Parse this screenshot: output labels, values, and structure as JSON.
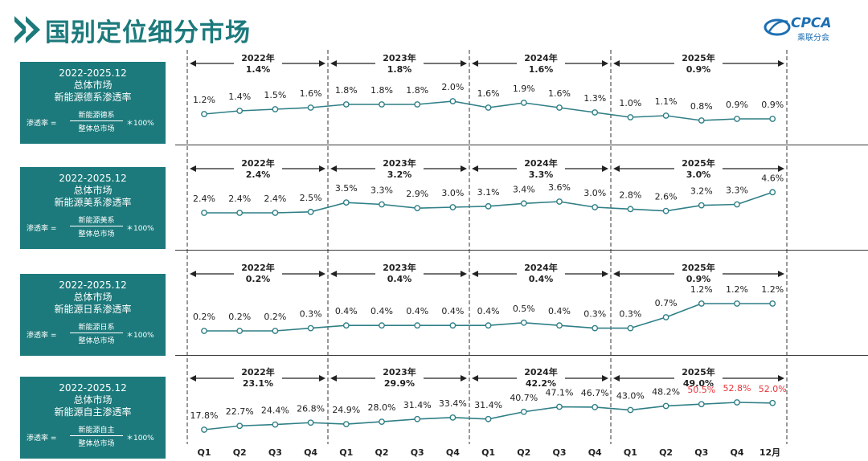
{
  "page": {
    "title": "国别定位细分市场",
    "logo_text": "CPCA",
    "logo_sub": "乘联分会"
  },
  "colors": {
    "teal": "#1d7a7c",
    "line": "#2f7f86",
    "highlight": "#e8343a"
  },
  "period_labels": [
    "Q1",
    "Q2",
    "Q3",
    "Q4",
    "Q1",
    "Q2",
    "Q3",
    "Q4",
    "Q1",
    "Q2",
    "Q3",
    "Q4",
    "Q1",
    "Q2",
    "Q3",
    "Q4",
    "12月"
  ],
  "panels": [
    {
      "box_line1": "2022-2025.12",
      "box_line2": "总体市场",
      "box_line3": "新能源德系渗透率",
      "formula_lhs": "渗透率 =",
      "formula_num": "新能源德系",
      "formula_den": "整体总市场",
      "formula_mul": "＊100%",
      "years": [
        {
          "year": "2022年",
          "value": "1.4%"
        },
        {
          "year": "2023年",
          "value": "1.8%"
        },
        {
          "year": "2024年",
          "value": "1.6%"
        },
        {
          "year": "2025年",
          "value": "0.9%"
        }
      ]
    },
    {
      "box_line1": "2022-2025.12",
      "box_line2": "总体市场",
      "box_line3": "新能源美系渗透率",
      "formula_lhs": "渗透率 =",
      "formula_num": "新能源美系",
      "formula_den": "整体总市场",
      "formula_mul": "＊100%",
      "years": [
        {
          "year": "2022年",
          "value": "2.4%"
        },
        {
          "year": "2023年",
          "value": "3.2%"
        },
        {
          "year": "2024年",
          "value": "3.3%"
        },
        {
          "year": "2025年",
          "value": "3.0%"
        }
      ]
    },
    {
      "box_line1": "2022-2025.12",
      "box_line2": "总体市场",
      "box_line3": "新能源日系渗透率",
      "formula_lhs": "渗透率 =",
      "formula_num": "新能源日系",
      "formula_den": "整体总市场",
      "formula_mul": "＊100%",
      "years": [
        {
          "year": "2022年",
          "value": "0.2%"
        },
        {
          "year": "2023年",
          "value": "0.4%"
        },
        {
          "year": "2024年",
          "value": "0.4%"
        },
        {
          "year": "2025年",
          "value": "0.9%"
        }
      ]
    },
    {
      "box_line1": "2022-2025.12",
      "box_line2": "总体市场",
      "box_line3": "新能源自主渗透率",
      "formula_lhs": "渗透率 =",
      "formula_num": "新能源自主",
      "formula_den": "整体总市场",
      "formula_mul": "＊100%",
      "years": [
        {
          "year": "2022年",
          "value": "23.1%"
        },
        {
          "year": "2023年",
          "value": "29.9%"
        },
        {
          "year": "2024年",
          "value": "42.2%"
        },
        {
          "year": "2025年",
          "value": "49.0%"
        }
      ]
    }
  ],
  "chart_data": [
    {
      "type": "line",
      "x": [
        "2022 Q1",
        "2022 Q2",
        "2022 Q3",
        "2022 Q4",
        "2023 Q1",
        "2023 Q2",
        "2023 Q3",
        "2023 Q4",
        "2024 Q1",
        "2024 Q2",
        "2024 Q3",
        "2024 Q4",
        "2025 Q1",
        "2025 Q2",
        "2025 Q3",
        "2025 Q4",
        "2025 12月"
      ],
      "series": [
        {
          "values": [
            1.2,
            1.4,
            1.5,
            1.6,
            1.8,
            1.8,
            1.8,
            2.0,
            1.6,
            1.9,
            1.6,
            1.3,
            1.0,
            1.1,
            0.8,
            0.9,
            0.9
          ]
        }
      ],
      "labels": [
        "1.2%",
        "1.4%",
        "1.5%",
        "1.6%",
        "1.8%",
        "1.8%",
        "1.8%",
        "2.0%",
        "1.6%",
        "1.9%",
        "1.6%",
        "1.3%",
        "1.0%",
        "1.1%",
        "0.8%",
        "0.9%",
        "0.9%"
      ],
      "highlighted": [],
      "ylim": [
        0,
        7
      ]
    },
    {
      "type": "line",
      "x": [
        "2022 Q1",
        "2022 Q2",
        "2022 Q3",
        "2022 Q4",
        "2023 Q1",
        "2023 Q2",
        "2023 Q3",
        "2023 Q4",
        "2024 Q1",
        "2024 Q2",
        "2024 Q3",
        "2024 Q4",
        "2025 Q1",
        "2025 Q2",
        "2025 Q3",
        "2025 Q4",
        "2025 12月"
      ],
      "series": [
        {
          "values": [
            2.4,
            2.4,
            2.4,
            2.5,
            3.5,
            3.3,
            2.9,
            3.0,
            3.1,
            3.4,
            3.6,
            3.0,
            2.8,
            2.6,
            3.2,
            3.3,
            4.6
          ]
        }
      ],
      "labels": [
        "2.4%",
        "2.4%",
        "2.4%",
        "2.5%",
        "3.5%",
        "3.3%",
        "2.9%",
        "3.0%",
        "3.1%",
        "3.4%",
        "3.6%",
        "3.0%",
        "2.8%",
        "2.6%",
        "3.2%",
        "3.3%",
        "4.6%"
      ],
      "highlighted": [],
      "ylim": [
        0,
        12
      ]
    },
    {
      "type": "line",
      "x": [
        "2022 Q1",
        "2022 Q2",
        "2022 Q3",
        "2022 Q4",
        "2023 Q1",
        "2023 Q2",
        "2023 Q3",
        "2023 Q4",
        "2024 Q1",
        "2024 Q2",
        "2024 Q3",
        "2024 Q4",
        "2025 Q1",
        "2025 Q2",
        "2025 Q3",
        "2025 Q4",
        "2025 12月"
      ],
      "series": [
        {
          "values": [
            0.2,
            0.2,
            0.2,
            0.3,
            0.4,
            0.4,
            0.4,
            0.4,
            0.4,
            0.5,
            0.4,
            0.3,
            0.3,
            0.7,
            1.2,
            1.2,
            1.2
          ]
        }
      ],
      "labels": [
        "0.2%",
        "0.2%",
        "0.2%",
        "0.3%",
        "0.4%",
        "0.4%",
        "0.4%",
        "0.4%",
        "0.4%",
        "0.5%",
        "0.4%",
        "0.3%",
        "0.3%",
        "0.7%",
        "1.2%",
        "1.2%",
        "1.2%"
      ],
      "highlighted": [],
      "ylim": [
        0,
        1.4
      ]
    },
    {
      "type": "line",
      "x": [
        "2022 Q1",
        "2022 Q2",
        "2022 Q3",
        "2022 Q4",
        "2023 Q1",
        "2023 Q2",
        "2023 Q3",
        "2023 Q4",
        "2024 Q1",
        "2024 Q2",
        "2024 Q3",
        "2024 Q4",
        "2025 Q1",
        "2025 Q2",
        "2025 Q3",
        "2025 Q4",
        "2025 12月"
      ],
      "series": [
        {
          "values": [
            17.8,
            22.7,
            24.4,
            26.8,
            24.9,
            28.0,
            31.4,
            33.4,
            31.4,
            40.7,
            47.1,
            46.7,
            43.0,
            48.2,
            50.5,
            52.8,
            52.0
          ]
        }
      ],
      "labels": [
        "17.8%",
        "22.7%",
        "24.4%",
        "26.8%",
        "24.9%",
        "28.0%",
        "31.4%",
        "33.4%",
        "31.4%",
        "40.7%",
        "47.1%",
        "46.7%",
        "43.0%",
        "48.2%",
        "50.5%",
        "52.8%",
        "52.0%"
      ],
      "highlighted": [
        14,
        15,
        16
      ],
      "ylim": [
        0,
        100
      ]
    }
  ]
}
